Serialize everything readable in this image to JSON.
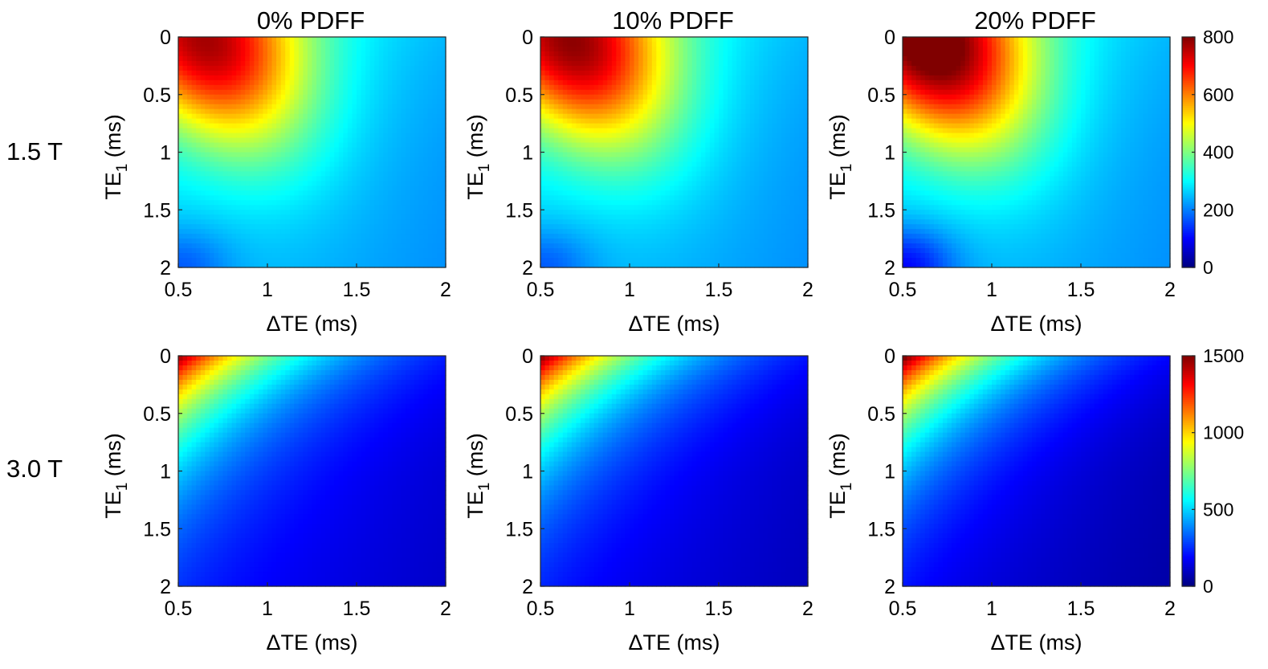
{
  "figure": {
    "column_titles": [
      "0% PDFF",
      "10% PDFF",
      "20% PDFF"
    ],
    "row_labels": [
      "1.5 T",
      "3.0 T"
    ]
  },
  "chart_data": {
    "type": "heatmap",
    "description_axes": {
      "xlabel": "ΔTE (ms)",
      "ylabel_main": "TE",
      "ylabel_sub": "1",
      "ylabel_unit": " (ms)"
    },
    "x_range": [
      0.5,
      2
    ],
    "y_range": [
      0,
      2
    ],
    "x_ticks": [
      "0.5",
      "1",
      "1.5",
      "2"
    ],
    "y_ticks": [
      "0",
      "0.5",
      "1",
      "1.5",
      "2"
    ],
    "colormap": "jet",
    "grid": false,
    "panels": [
      {
        "row": 0,
        "col": 0,
        "field": "1.5 T",
        "pdff": 0,
        "peak_value": 700,
        "peak_at": {
          "dte": 0.68,
          "te1": 0.0
        },
        "min_value": 250,
        "clim": [
          0,
          800
        ]
      },
      {
        "row": 0,
        "col": 1,
        "field": "1.5 T",
        "pdff": 10,
        "peak_value": 720,
        "peak_at": {
          "dte": 0.7,
          "te1": 0.05
        },
        "min_value": 240,
        "clim": [
          0,
          800
        ]
      },
      {
        "row": 0,
        "col": 2,
        "field": "1.5 T",
        "pdff": 20,
        "peak_value": 790,
        "peak_at": {
          "dte": 0.68,
          "te1": 0.1
        },
        "min_value": 150,
        "clim": [
          0,
          800
        ]
      },
      {
        "row": 1,
        "col": 0,
        "field": "3.0 T",
        "pdff": 0,
        "peak_value": 1350,
        "peak_at": {
          "dte": 0.5,
          "te1": 0.0
        },
        "min_value": 150,
        "clim": [
          0,
          1500
        ]
      },
      {
        "row": 1,
        "col": 1,
        "field": "3.0 T",
        "pdff": 10,
        "peak_value": 1380,
        "peak_at": {
          "dte": 0.5,
          "te1": 0.0
        },
        "min_value": 130,
        "clim": [
          0,
          1500
        ]
      },
      {
        "row": 1,
        "col": 2,
        "field": "3.0 T",
        "pdff": 20,
        "peak_value": 1420,
        "peak_at": {
          "dte": 0.5,
          "te1": 0.0
        },
        "min_value": 100,
        "clim": [
          0,
          1500
        ]
      }
    ],
    "colorbars": [
      {
        "row": 0,
        "range": [
          0,
          800
        ],
        "ticks": [
          "0",
          "200",
          "400",
          "600",
          "800"
        ]
      },
      {
        "row": 1,
        "range": [
          0,
          1500
        ],
        "ticks": [
          "0",
          "500",
          "1000",
          "1500"
        ]
      }
    ]
  }
}
